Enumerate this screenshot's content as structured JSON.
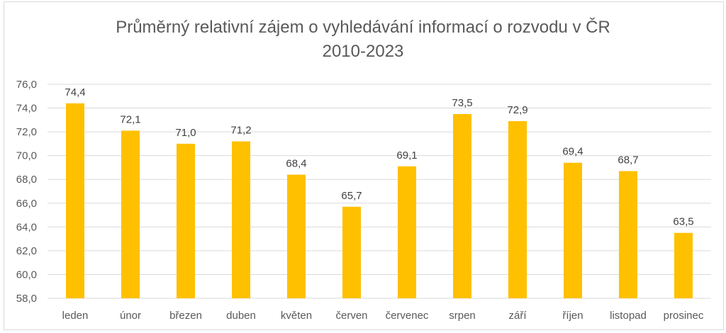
{
  "chart_data": {
    "type": "bar",
    "title_line1": "Průměrný relativní zájem o vyhledávání informací o rozvodu v ČR",
    "title_line2": "2010-2023",
    "categories": [
      "leden",
      "únor",
      "březen",
      "duben",
      "květen",
      "červen",
      "červenec",
      "srpen",
      "září",
      "říjen",
      "listopad",
      "prosinec"
    ],
    "values": [
      74.4,
      72.1,
      71.0,
      71.2,
      68.4,
      65.7,
      69.1,
      73.5,
      72.9,
      69.4,
      68.7,
      63.5
    ],
    "data_labels": [
      "74,4",
      "72,1",
      "71,0",
      "71,2",
      "68,4",
      "65,7",
      "69,1",
      "73,5",
      "72,9",
      "69,4",
      "68,7",
      "63,5"
    ],
    "ylim": [
      58,
      76
    ],
    "yticks": [
      "58,0",
      "60,0",
      "62,0",
      "64,0",
      "66,0",
      "68,0",
      "70,0",
      "72,0",
      "74,0",
      "76,0"
    ],
    "grid": true,
    "bar_color": "#FFC000",
    "xlabel": "",
    "ylabel": ""
  }
}
